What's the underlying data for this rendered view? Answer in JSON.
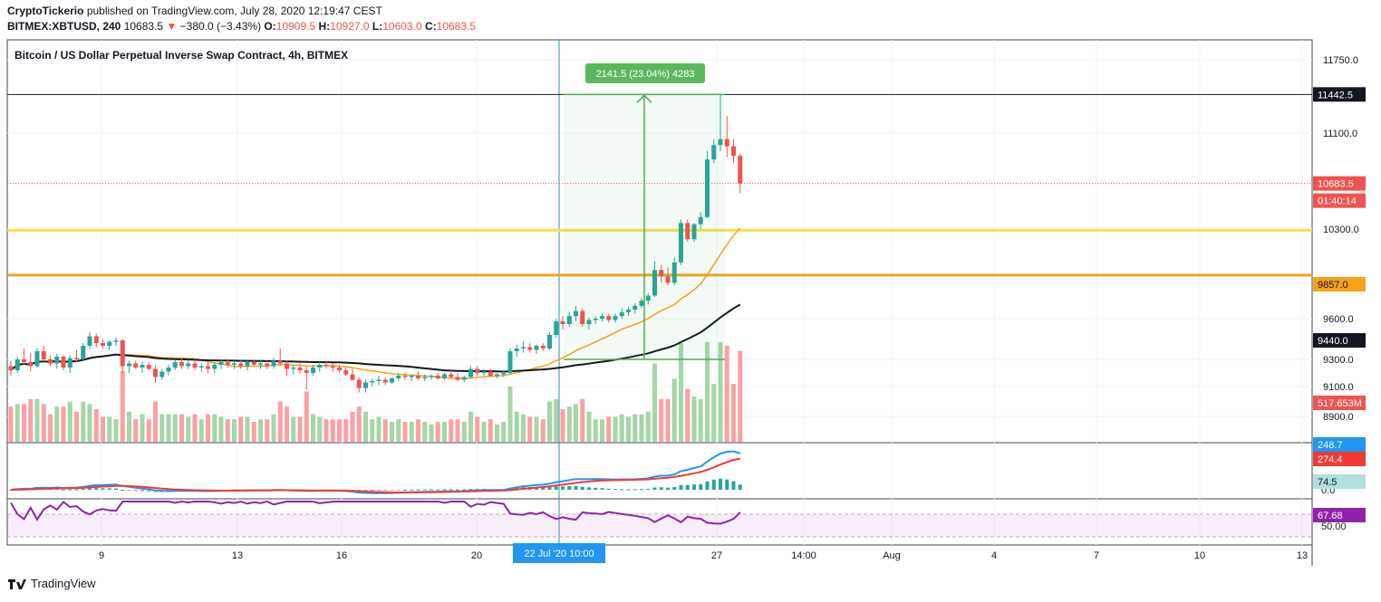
{
  "header": {
    "author": "CryptoTickerio",
    "published": "published on TradingView.com, July 28, 2020 12:19:47 CEST",
    "symbol": "BITMEX:XBTUSD, 240",
    "last": "10683.5",
    "change": "−380.0 (−3.43%)",
    "o_label": "O:",
    "o": "10909.5",
    "h_label": "H:",
    "h": "10927.0",
    "l_label": "L:",
    "l": "10603.0",
    "c_label": "C:",
    "c": "10683.5"
  },
  "footer": {
    "brand": "TradingView"
  },
  "colors": {
    "up": "#26a69a",
    "down": "#ef5350",
    "yellow": "#f5e14b",
    "orange": "#f5a11d",
    "sma_orange": "#f7a21b",
    "sma_black": "#131722",
    "macd": "#2196f3",
    "signal": "#ef3b33",
    "rsi": "#8e24aa",
    "measure": "#4caf50"
  },
  "chart_data": [
    {
      "type": "candlestick",
      "title": "Bitcoin / US Dollar Perpetual Inverse Swap Contract, 4h, BITMEX",
      "y_ticks": [
        8900,
        9100,
        9300,
        9600,
        10300,
        11100,
        11750
      ],
      "y_tick_labels": [
        "8900.0",
        "9100.0",
        "9300.0",
        "9600.0",
        "10300.0",
        "11100.0",
        "11750.0"
      ],
      "ylim": [
        8760,
        11870
      ],
      "x_tick_labels": [
        "9",
        "13",
        "16",
        "20",
        "27",
        "14:00",
        "Aug",
        "4",
        "7",
        "10",
        "13"
      ],
      "candles": [
        [
          9250,
          9290,
          9180,
          9220
        ],
        [
          9220,
          9320,
          9200,
          9300
        ],
        [
          9300,
          9380,
          9260,
          9280
        ],
        [
          9280,
          9350,
          9210,
          9250
        ],
        [
          9250,
          9380,
          9240,
          9360
        ],
        [
          9360,
          9400,
          9280,
          9300
        ],
        [
          9300,
          9330,
          9250,
          9270
        ],
        [
          9270,
          9340,
          9230,
          9320
        ],
        [
          9320,
          9330,
          9220,
          9240
        ],
        [
          9240,
          9330,
          9200,
          9310
        ],
        [
          9310,
          9370,
          9280,
          9300
        ],
        [
          9300,
          9420,
          9290,
          9400
        ],
        [
          9400,
          9500,
          9380,
          9470
        ],
        [
          9470,
          9490,
          9390,
          9420
        ],
        [
          9420,
          9450,
          9380,
          9400
        ],
        [
          9400,
          9440,
          9370,
          9430
        ],
        [
          9430,
          9460,
          9400,
          9440
        ],
        [
          9440,
          9450,
          9200,
          9250
        ],
        [
          9250,
          9290,
          9200,
          9270
        ],
        [
          9270,
          9290,
          9230,
          9240
        ],
        [
          9240,
          9280,
          9200,
          9260
        ],
        [
          9260,
          9280,
          9220,
          9230
        ],
        [
          9230,
          9260,
          9130,
          9170
        ],
        [
          9170,
          9230,
          9150,
          9210
        ],
        [
          9210,
          9260,
          9180,
          9240
        ],
        [
          9240,
          9300,
          9220,
          9280
        ],
        [
          9280,
          9310,
          9230,
          9250
        ],
        [
          9250,
          9300,
          9230,
          9270
        ],
        [
          9270,
          9300,
          9220,
          9240
        ],
        [
          9240,
          9270,
          9210,
          9250
        ],
        [
          9250,
          9280,
          9200,
          9230
        ],
        [
          9230,
          9280,
          9200,
          9260
        ],
        [
          9260,
          9300,
          9230,
          9280
        ],
        [
          9280,
          9300,
          9240,
          9260
        ],
        [
          9260,
          9290,
          9230,
          9270
        ],
        [
          9270,
          9300,
          9230,
          9250
        ],
        [
          9250,
          9290,
          9220,
          9280
        ],
        [
          9280,
          9300,
          9250,
          9260
        ],
        [
          9260,
          9290,
          9230,
          9270
        ],
        [
          9270,
          9290,
          9230,
          9250
        ],
        [
          9250,
          9310,
          9230,
          9290
        ],
        [
          9290,
          9380,
          9250,
          9270
        ],
        [
          9270,
          9290,
          9180,
          9230
        ],
        [
          9230,
          9260,
          9190,
          9240
        ],
        [
          9240,
          9270,
          9200,
          9220
        ],
        [
          9220,
          9250,
          9080,
          9200
        ],
        [
          9200,
          9260,
          9180,
          9240
        ],
        [
          9240,
          9280,
          9210,
          9260
        ],
        [
          9260,
          9290,
          9230,
          9250
        ],
        [
          9250,
          9270,
          9210,
          9240
        ],
        [
          9240,
          9260,
          9200,
          9220
        ],
        [
          9220,
          9240,
          9180,
          9190
        ],
        [
          9190,
          9230,
          9140,
          9150
        ],
        [
          9150,
          9170,
          9060,
          9090
        ],
        [
          9090,
          9150,
          9060,
          9130
        ],
        [
          9130,
          9160,
          9100,
          9140
        ],
        [
          9140,
          9180,
          9110,
          9150
        ],
        [
          9150,
          9170,
          9110,
          9130
        ],
        [
          9130,
          9170,
          9120,
          9160
        ],
        [
          9160,
          9200,
          9140,
          9180
        ],
        [
          9180,
          9200,
          9150,
          9170
        ],
        [
          9170,
          9190,
          9140,
          9180
        ],
        [
          9180,
          9210,
          9150,
          9160
        ],
        [
          9160,
          9190,
          9140,
          9170
        ],
        [
          9170,
          9190,
          9150,
          9180
        ],
        [
          9180,
          9200,
          9150,
          9160
        ],
        [
          9160,
          9200,
          9150,
          9190
        ],
        [
          9190,
          9220,
          9160,
          9170
        ],
        [
          9170,
          9200,
          9140,
          9150
        ],
        [
          9150,
          9180,
          9130,
          9170
        ],
        [
          9170,
          9250,
          9160,
          9230
        ],
        [
          9230,
          9250,
          9180,
          9200
        ],
        [
          9200,
          9230,
          9180,
          9210
        ],
        [
          9210,
          9230,
          9170,
          9180
        ],
        [
          9180,
          9200,
          9160,
          9190
        ],
        [
          9190,
          9220,
          9170,
          9200
        ],
        [
          9200,
          9380,
          9190,
          9360
        ],
        [
          9360,
          9410,
          9320,
          9380
        ],
        [
          9380,
          9430,
          9350,
          9390
        ],
        [
          9390,
          9420,
          9350,
          9370
        ],
        [
          9370,
          9410,
          9340,
          9400
        ],
        [
          9400,
          9420,
          9360,
          9380
        ],
        [
          9380,
          9500,
          9370,
          9480
        ],
        [
          9480,
          9600,
          9460,
          9580
        ],
        [
          9580,
          9620,
          9520,
          9560
        ],
        [
          9560,
          9650,
          9540,
          9620
        ],
        [
          9620,
          9700,
          9580,
          9660
        ],
        [
          9660,
          9680,
          9540,
          9560
        ],
        [
          9560,
          9610,
          9520,
          9590
        ],
        [
          9590,
          9620,
          9560,
          9600
        ],
        [
          9600,
          9640,
          9580,
          9620
        ],
        [
          9620,
          9640,
          9570,
          9590
        ],
        [
          9590,
          9640,
          9570,
          9620
        ],
        [
          9620,
          9680,
          9600,
          9650
        ],
        [
          9650,
          9690,
          9620,
          9670
        ],
        [
          9670,
          9720,
          9640,
          9700
        ],
        [
          9700,
          9760,
          9680,
          9740
        ],
        [
          9740,
          9800,
          9710,
          9780
        ],
        [
          9780,
          10050,
          9770,
          9980
        ],
        [
          9980,
          10020,
          9880,
          9930
        ],
        [
          9930,
          10000,
          9860,
          9880
        ],
        [
          9880,
          10080,
          9860,
          10040
        ],
        [
          10040,
          10380,
          10020,
          10350
        ],
        [
          10350,
          10380,
          10200,
          10220
        ],
        [
          10220,
          10350,
          10200,
          10340
        ],
        [
          10340,
          10440,
          10300,
          10400
        ],
        [
          10400,
          10950,
          10390,
          10880
        ],
        [
          10880,
          11050,
          10850,
          11000
        ],
        [
          11000,
          11440,
          10950,
          11050
        ],
        [
          11050,
          11250,
          10900,
          10990
        ],
        [
          10990,
          11050,
          10850,
          10910
        ],
        [
          10910,
          10930,
          10600,
          10680
        ]
      ],
      "volume_scale_max": 650
    },
    {
      "type": "line",
      "name": "MACD",
      "series": [
        {
          "name": "MACD",
          "values": [
            248.7
          ]
        },
        {
          "name": "Signal",
          "values": [
            274.4
          ]
        },
        {
          "name": "Histogram",
          "values": [
            74.5
          ]
        }
      ],
      "y_ticks": [
        0
      ],
      "y_tick_labels": [
        "0.0"
      ]
    },
    {
      "type": "line",
      "name": "RSI",
      "series": [
        {
          "name": "RSI",
          "values": [
            67.68
          ]
        }
      ],
      "y_ticks": [
        50
      ],
      "y_tick_labels": [
        "50.00"
      ]
    }
  ],
  "price_labels": {
    "resistance": "11442.5",
    "last": "10683.5",
    "countdown": "01:40:14",
    "sma_orange": "9857.0",
    "sma_black": "9440.0",
    "volume": "517.653M",
    "macd_value": "248.7",
    "signal_value": "274.4",
    "hist_value": "74.5",
    "rsi_value": "67.68"
  },
  "measure": {
    "label": "2141.5 (23.04%) 4283"
  },
  "crosshair": {
    "label": "22 Jul '20   10:00"
  },
  "levels": {
    "yellow": 10290,
    "orange": 9940,
    "resistance": 11442.5
  }
}
